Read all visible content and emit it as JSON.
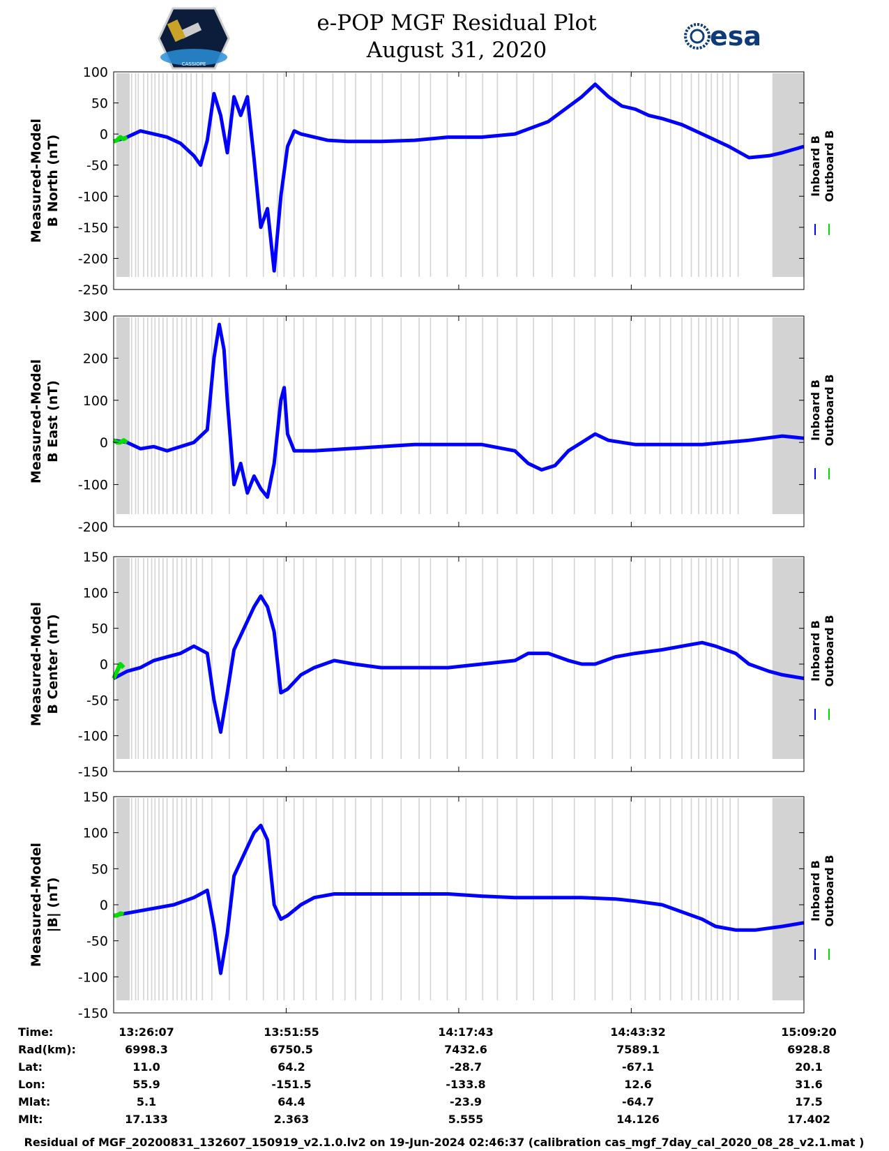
{
  "header": {
    "title_line1": "e-POP MGF Residual Plot",
    "title_line2": "August 31, 2020",
    "esa_logo_text": "esa",
    "cassiope_logo_text": "CASSIOPE"
  },
  "legend": {
    "inboard": "Inboard B",
    "outboard": "Outboard B",
    "inboard_color": "#0000ff",
    "outboard_color": "#00dd00"
  },
  "colors": {
    "inboard": "#0000ff",
    "outboard": "#00dd00",
    "gap": "#d3d3d3",
    "axis": "#000000"
  },
  "chart_data": [
    {
      "type": "line",
      "ylabel_line1": "Measured-Model",
      "ylabel_line2": "B North (nT)",
      "ylim": [
        -250,
        100
      ],
      "yticks": [
        100,
        50,
        0,
        -50,
        -100,
        -150,
        -200,
        -250
      ],
      "xlim_minutes": [
        0,
        103.22
      ],
      "series": [
        {
          "name": "Inboard B",
          "x_minutes": [
            0,
            2,
            4,
            6,
            8,
            10,
            12,
            13,
            14,
            15,
            16,
            17,
            18,
            19,
            20,
            21,
            22,
            23,
            24,
            25,
            26,
            27,
            28,
            30,
            32,
            35,
            40,
            45,
            50,
            55,
            60,
            65,
            70,
            72,
            74,
            76,
            78,
            80,
            82,
            85,
            88,
            92,
            95,
            98,
            100,
            103.2
          ],
          "values": [
            -12,
            -5,
            5,
            0,
            -5,
            -15,
            -35,
            -50,
            -10,
            65,
            30,
            -30,
            60,
            30,
            60,
            -40,
            -150,
            -120,
            -220,
            -100,
            -20,
            5,
            0,
            -5,
            -10,
            -12,
            -12,
            -10,
            -5,
            -5,
            0,
            20,
            60,
            80,
            60,
            45,
            40,
            30,
            25,
            15,
            0,
            -20,
            -38,
            -35,
            -30,
            -20
          ]
        },
        {
          "name": "Outboard B",
          "x_minutes": [
            0,
            0.5,
            1,
            1.5,
            2
          ],
          "values": [
            -12,
            -10,
            -5,
            -8,
            -5
          ]
        }
      ],
      "x_tick_labels": [
        "",
        "",
        "",
        "",
        ""
      ]
    },
    {
      "type": "line",
      "ylabel_line1": "Measured-Model",
      "ylabel_line2": "B East (nT)",
      "ylim": [
        -200,
        300
      ],
      "yticks": [
        300,
        200,
        100,
        0,
        -100,
        -200
      ],
      "xlim_minutes": [
        0,
        103.22
      ],
      "series": [
        {
          "name": "Inboard B",
          "x_minutes": [
            0,
            2,
            4,
            6,
            8,
            10,
            12,
            14,
            15,
            15.8,
            16.5,
            17,
            18,
            19,
            20,
            21,
            22,
            23,
            24,
            25,
            25.5,
            26,
            27,
            30,
            35,
            40,
            45,
            50,
            55,
            60,
            62,
            64,
            66,
            68,
            70,
            72,
            74,
            78,
            82,
            88,
            95,
            100,
            103.2
          ],
          "values": [
            5,
            0,
            -15,
            -10,
            -20,
            -10,
            0,
            30,
            200,
            280,
            220,
            100,
            -100,
            -50,
            -120,
            -80,
            -110,
            -130,
            -50,
            100,
            130,
            20,
            -20,
            -20,
            -15,
            -10,
            -5,
            -5,
            -5,
            -20,
            -50,
            -65,
            -55,
            -20,
            0,
            20,
            5,
            -5,
            -5,
            -5,
            5,
            15,
            10
          ]
        },
        {
          "name": "Outboard B",
          "x_minutes": [
            0,
            0.5,
            1,
            1.5,
            2
          ],
          "values": [
            5,
            0,
            0,
            5,
            0
          ]
        }
      ],
      "x_tick_labels": [
        "",
        "",
        "",
        "",
        ""
      ]
    },
    {
      "type": "line",
      "ylabel_line1": "Measured-Model",
      "ylabel_line2": "B Center (nT)",
      "ylim": [
        -150,
        150
      ],
      "yticks": [
        150,
        100,
        50,
        0,
        -50,
        -100,
        -150
      ],
      "xlim_minutes": [
        0,
        103.22
      ],
      "series": [
        {
          "name": "Inboard B",
          "x_minutes": [
            0,
            2,
            4,
            6,
            8,
            10,
            12,
            14,
            15,
            16,
            17,
            18,
            19,
            20,
            21,
            22,
            23,
            24,
            25,
            26,
            28,
            30,
            33,
            36,
            40,
            45,
            50,
            55,
            60,
            62,
            65,
            68,
            70,
            72,
            75,
            78,
            82,
            85,
            88,
            90,
            93,
            95,
            98,
            100,
            103.2
          ],
          "values": [
            -20,
            -10,
            -5,
            5,
            10,
            15,
            25,
            15,
            -50,
            -95,
            -40,
            20,
            40,
            60,
            80,
            95,
            80,
            45,
            -40,
            -35,
            -15,
            -5,
            5,
            0,
            -5,
            -5,
            -5,
            0,
            5,
            15,
            15,
            5,
            0,
            0,
            10,
            15,
            20,
            25,
            30,
            25,
            15,
            0,
            -10,
            -15,
            -20
          ]
        },
        {
          "name": "Outboard B",
          "x_minutes": [
            0,
            0.5,
            1,
            1.5
          ],
          "values": [
            -20,
            -10,
            0,
            -5
          ]
        }
      ],
      "x_tick_labels": [
        "",
        "",
        "",
        "",
        ""
      ]
    },
    {
      "type": "line",
      "ylabel_line1": "Measured-Model",
      "ylabel_line2": "|B| (nT)",
      "ylim": [
        -150,
        150
      ],
      "yticks": [
        150,
        100,
        50,
        0,
        -50,
        -100,
        -150
      ],
      "xlim_minutes": [
        0,
        103.22
      ],
      "series": [
        {
          "name": "Inboard B",
          "x_minutes": [
            0,
            3,
            6,
            9,
            12,
            14,
            15,
            16,
            17,
            18,
            19,
            20,
            21,
            22,
            23,
            24,
            25,
            26,
            28,
            30,
            33,
            36,
            40,
            45,
            50,
            55,
            60,
            65,
            70,
            75,
            78,
            82,
            85,
            88,
            90,
            93,
            96,
            100,
            103.2
          ],
          "values": [
            -15,
            -10,
            -5,
            0,
            10,
            20,
            -30,
            -95,
            -40,
            40,
            60,
            80,
            100,
            110,
            90,
            0,
            -20,
            -15,
            0,
            10,
            15,
            15,
            15,
            15,
            15,
            12,
            10,
            10,
            10,
            8,
            5,
            0,
            -10,
            -20,
            -30,
            -35,
            -35,
            -30,
            -25
          ]
        },
        {
          "name": "Outboard B",
          "x_minutes": [
            0,
            0.5,
            1,
            1.5
          ],
          "values": [
            -15,
            -15,
            -12,
            -13
          ]
        }
      ],
      "x_tick_labels": [
        "",
        "",
        "",
        "",
        ""
      ]
    }
  ],
  "info_table": {
    "row_labels": [
      "Time:",
      "Rad(km):",
      "Lat:",
      "Lon:",
      "Mlat:",
      "Mlt:"
    ],
    "columns": [
      [
        "13:26:07",
        "6998.3",
        "11.0",
        "55.9",
        "5.1",
        "17.133"
      ],
      [
        "13:51:55",
        "6750.5",
        "64.2",
        "-151.5",
        "64.4",
        "2.363"
      ],
      [
        "14:17:43",
        "7432.6",
        "-28.7",
        "-133.8",
        "-23.9",
        "5.555"
      ],
      [
        "14:43:32",
        "7589.1",
        "-67.1",
        "12.6",
        "-64.7",
        "14.126"
      ],
      [
        "15:09:20",
        "6928.8",
        "20.1",
        "31.6",
        "17.5",
        "17.402"
      ]
    ]
  },
  "footer": {
    "text": "Residual of MGF_20200831_132607_150919_v2.1.0.lv2 on 19-Jun-2024 02:46:37 (calibration cas_mgf_7day_cal_2020_08_28_v2.1.mat )"
  }
}
